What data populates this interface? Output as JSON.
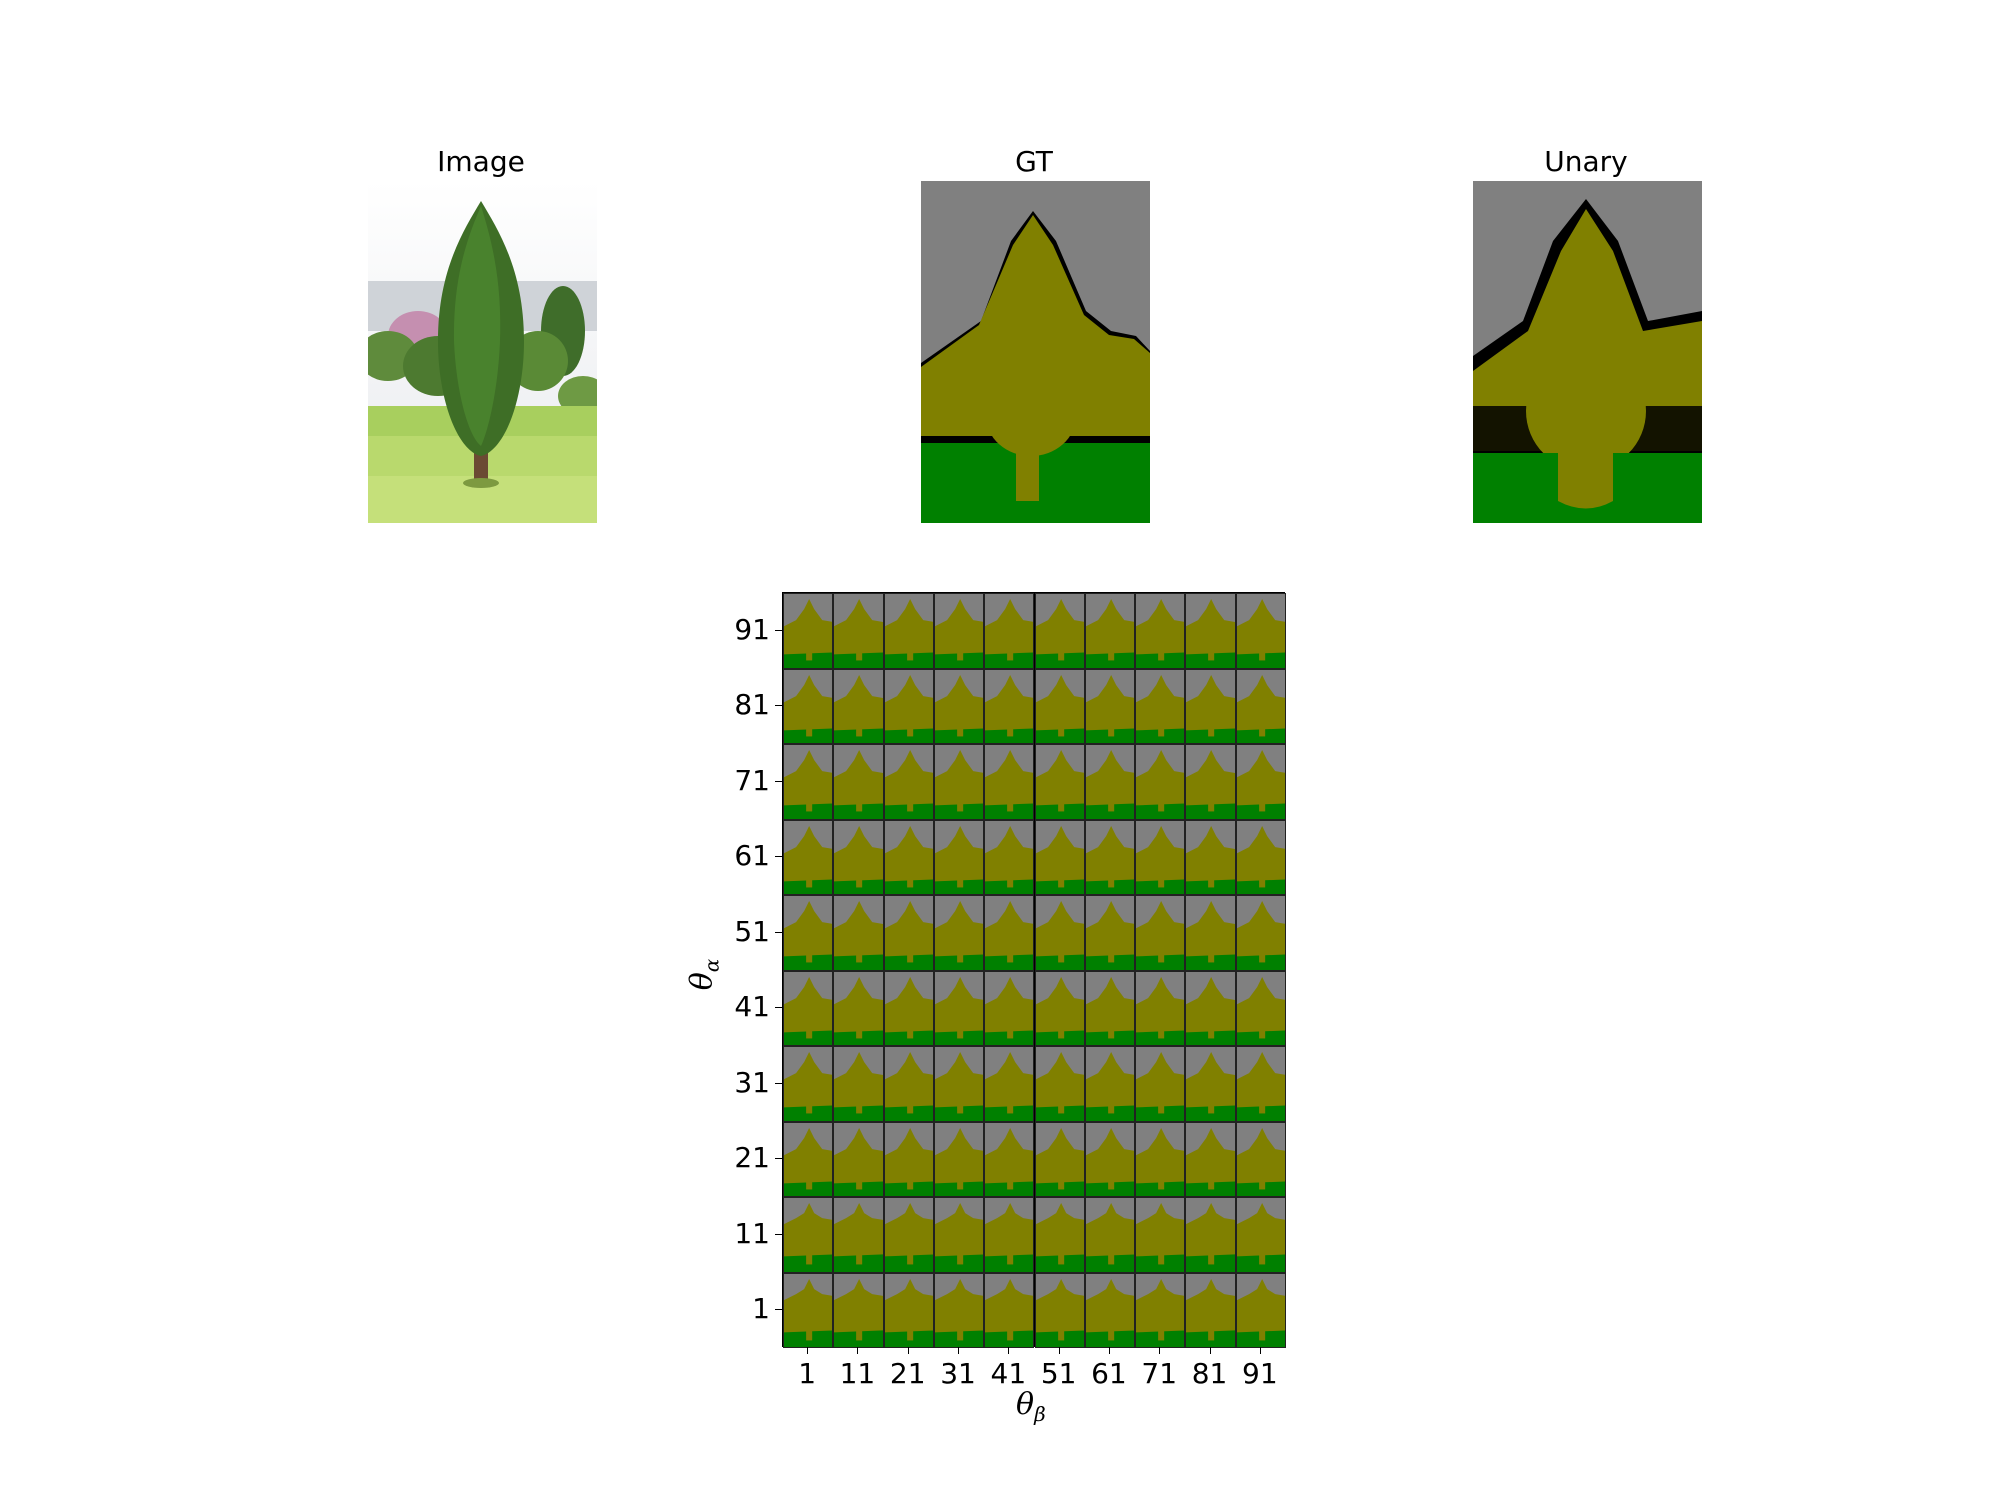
{
  "panels": {
    "image_title": "Image",
    "gt_title": "GT",
    "unary_title": "Unary"
  },
  "colors": {
    "background_class": "#808080",
    "tree_class": "#808000",
    "grass_class": "#008000",
    "void_class": "#000000"
  },
  "grid": {
    "y_ticks": [
      "1",
      "11",
      "21",
      "31",
      "41",
      "51",
      "61",
      "71",
      "81",
      "91"
    ],
    "x_ticks": [
      "1",
      "11",
      "21",
      "31",
      "41",
      "51",
      "61",
      "71",
      "81",
      "91"
    ],
    "x_label_base": "θ",
    "x_label_sub": "β",
    "y_label_base": "θ",
    "y_label_sub": "α"
  }
}
